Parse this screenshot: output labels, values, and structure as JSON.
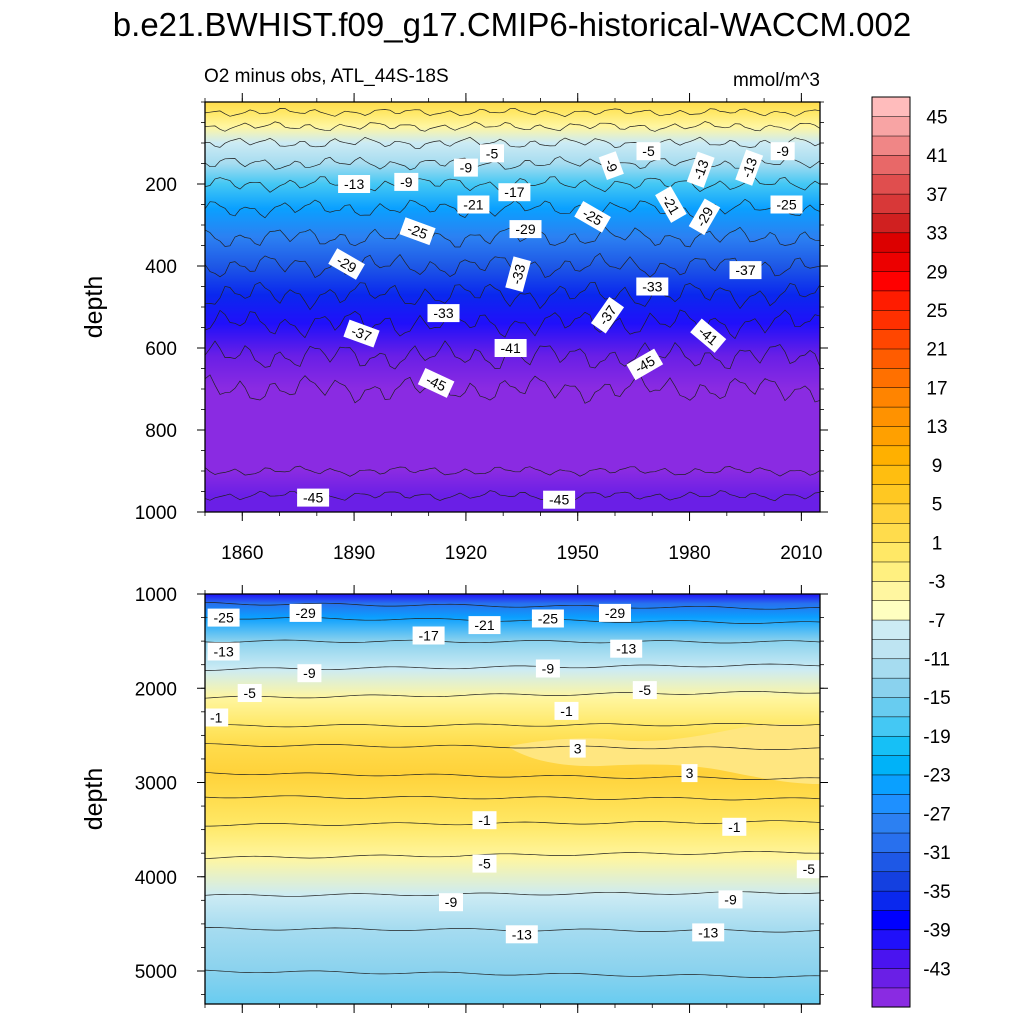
{
  "title": "b.e21.BWHIST.f09_g17.CMIP6-historical-WACCM.002",
  "chart_data": [
    {
      "type": "heatmap",
      "panel": "upper",
      "subtitle_left": "O2 minus obs, ATL_44S-18S",
      "subtitle_right": "mmol/m^3",
      "ylabel": "depth",
      "x_range": [
        1850,
        2015
      ],
      "y_range": [
        0,
        1000
      ],
      "y_inverted": true,
      "xticks": [
        1860,
        1890,
        1920,
        1950,
        1980,
        2010
      ],
      "yticks": [
        200,
        400,
        600,
        800,
        1000
      ],
      "depth_profile": [
        {
          "depth": 0,
          "value": 2
        },
        {
          "depth": 25,
          "value": -1
        },
        {
          "depth": 60,
          "value": -5
        },
        {
          "depth": 100,
          "value": -9
        },
        {
          "depth": 150,
          "value": -13
        },
        {
          "depth": 200,
          "value": -19
        },
        {
          "depth": 260,
          "value": -25
        },
        {
          "depth": 330,
          "value": -29
        },
        {
          "depth": 400,
          "value": -33
        },
        {
          "depth": 470,
          "value": -37
        },
        {
          "depth": 540,
          "value": -41
        },
        {
          "depth": 620,
          "value": -44
        },
        {
          "depth": 700,
          "value": -46
        },
        {
          "depth": 900,
          "value": -46
        },
        {
          "depth": 960,
          "value": -45
        },
        {
          "depth": 1000,
          "value": -44
        }
      ],
      "contour_labels": [
        {
          "text": "-5",
          "year": 1927,
          "depth": 125,
          "angle": 0
        },
        {
          "text": "-5",
          "year": 1969,
          "depth": 120,
          "angle": 0
        },
        {
          "text": "-9",
          "year": 1920,
          "depth": 160,
          "angle": 0
        },
        {
          "text": "-9",
          "year": 1904,
          "depth": 195,
          "angle": 0
        },
        {
          "text": "-9",
          "year": 1959,
          "depth": 155,
          "angle": 70
        },
        {
          "text": "-9",
          "year": 2005,
          "depth": 120,
          "angle": 0
        },
        {
          "text": "-13",
          "year": 1890,
          "depth": 200,
          "angle": 0
        },
        {
          "text": "-13",
          "year": 1983,
          "depth": 165,
          "angle": -70
        },
        {
          "text": "-13",
          "year": 1996,
          "depth": 160,
          "angle": -70
        },
        {
          "text": "-17",
          "year": 1933,
          "depth": 220,
          "angle": 0
        },
        {
          "text": "-21",
          "year": 1922,
          "depth": 250,
          "angle": 0
        },
        {
          "text": "-21",
          "year": 1975,
          "depth": 250,
          "angle": 60
        },
        {
          "text": "-25",
          "year": 1907,
          "depth": 315,
          "angle": 20
        },
        {
          "text": "-25",
          "year": 1954,
          "depth": 280,
          "angle": 30
        },
        {
          "text": "-25",
          "year": 2006,
          "depth": 250,
          "angle": 0
        },
        {
          "text": "-29",
          "year": 1936,
          "depth": 310,
          "angle": 0
        },
        {
          "text": "-29",
          "year": 1984,
          "depth": 280,
          "angle": -60
        },
        {
          "text": "-29",
          "year": 1888,
          "depth": 395,
          "angle": 30
        },
        {
          "text": "-33",
          "year": 1934,
          "depth": 420,
          "angle": -75
        },
        {
          "text": "-33",
          "year": 1970,
          "depth": 450,
          "angle": 0
        },
        {
          "text": "-33",
          "year": 1914,
          "depth": 515,
          "angle": 0
        },
        {
          "text": "-37",
          "year": 1995,
          "depth": 410,
          "angle": 0
        },
        {
          "text": "-37",
          "year": 1958,
          "depth": 520,
          "angle": -55
        },
        {
          "text": "-37",
          "year": 1892,
          "depth": 565,
          "angle": 20
        },
        {
          "text": "-41",
          "year": 1932,
          "depth": 600,
          "angle": 0
        },
        {
          "text": "-41",
          "year": 1985,
          "depth": 570,
          "angle": 40
        },
        {
          "text": "-45",
          "year": 1968,
          "depth": 640,
          "angle": -30
        },
        {
          "text": "-45",
          "year": 1912,
          "depth": 685,
          "angle": 25
        },
        {
          "text": "-45",
          "year": 1879,
          "depth": 965,
          "angle": 0
        },
        {
          "text": "-45",
          "year": 1945,
          "depth": 970,
          "angle": 0
        }
      ]
    },
    {
      "type": "heatmap",
      "panel": "lower",
      "ylabel": "depth",
      "x_range": [
        1850,
        2015
      ],
      "y_range": [
        1000,
        5350
      ],
      "y_inverted": true,
      "yticks": [
        1000,
        2000,
        3000,
        4000,
        5000
      ],
      "depth_profile": [
        {
          "depth": 1000,
          "value": -40
        },
        {
          "depth": 1100,
          "value": -30
        },
        {
          "depth": 1250,
          "value": -25
        },
        {
          "depth": 1500,
          "value": -15
        },
        {
          "depth": 1800,
          "value": -9
        },
        {
          "depth": 2100,
          "value": -4
        },
        {
          "depth": 2400,
          "value": 0.5
        },
        {
          "depth": 2600,
          "value": 2.5
        },
        {
          "depth": 2900,
          "value": 3
        },
        {
          "depth": 3150,
          "value": 2
        },
        {
          "depth": 3450,
          "value": -0.5
        },
        {
          "depth": 3800,
          "value": -4
        },
        {
          "depth": 4200,
          "value": -8
        },
        {
          "depth": 4550,
          "value": -12
        },
        {
          "depth": 5000,
          "value": -15
        },
        {
          "depth": 5350,
          "value": -17
        }
      ],
      "contour_labels": [
        {
          "text": "-25",
          "year": 1855,
          "depth": 1250
        },
        {
          "text": "-29",
          "year": 1877,
          "depth": 1200
        },
        {
          "text": "-21",
          "year": 1925,
          "depth": 1330
        },
        {
          "text": "-17",
          "year": 1910,
          "depth": 1440
        },
        {
          "text": "-25",
          "year": 1942,
          "depth": 1260
        },
        {
          "text": "-29",
          "year": 1960,
          "depth": 1200
        },
        {
          "text": "-13",
          "year": 1855,
          "depth": 1610
        },
        {
          "text": "-13",
          "year": 1963,
          "depth": 1580
        },
        {
          "text": "-9",
          "year": 1878,
          "depth": 1840
        },
        {
          "text": "-9",
          "year": 1942,
          "depth": 1790
        },
        {
          "text": "-5",
          "year": 1862,
          "depth": 2050
        },
        {
          "text": "-5",
          "year": 1968,
          "depth": 2020
        },
        {
          "text": "-1",
          "year": 1853,
          "depth": 2310
        },
        {
          "text": "-1",
          "year": 1947,
          "depth": 2240
        },
        {
          "text": "3",
          "year": 1950,
          "depth": 2640
        },
        {
          "text": "3",
          "year": 1980,
          "depth": 2900
        },
        {
          "text": "-1",
          "year": 1925,
          "depth": 3400
        },
        {
          "text": "-1",
          "year": 1992,
          "depth": 3470
        },
        {
          "text": "-5",
          "year": 1925,
          "depth": 3860
        },
        {
          "text": "-5",
          "year": 2012,
          "depth": 3920
        },
        {
          "text": "-9",
          "year": 1916,
          "depth": 4270
        },
        {
          "text": "-9",
          "year": 1991,
          "depth": 4240
        },
        {
          "text": "-13",
          "year": 1935,
          "depth": 4610
        },
        {
          "text": "-13",
          "year": 1985,
          "depth": 4590
        }
      ]
    }
  ],
  "colorbar": {
    "labels": [
      "45",
      "41",
      "37",
      "33",
      "29",
      "25",
      "21",
      "17",
      "13",
      "9",
      "5",
      "1",
      "-3",
      "-7",
      "-11",
      "-15",
      "-19",
      "-23",
      "-27",
      "-31",
      "-35",
      "-39",
      "-43"
    ],
    "levels_min": -47,
    "levels_step": 2,
    "colors_bottom_to_top": [
      "#8a2be2",
      "#6a1fe6",
      "#4a14f0",
      "#2010fa",
      "#0000ff",
      "#0a28ee",
      "#1440e0",
      "#1e58e6",
      "#2870ee",
      "#2c80f2",
      "#1e90ff",
      "#0aa0ff",
      "#00b2f8",
      "#16c0f6",
      "#44c8f4",
      "#68ccf0",
      "#8ad2ee",
      "#a6dcf0",
      "#bee4f2",
      "#ccebf4",
      "#ffffc0",
      "#fff6a0",
      "#fff080",
      "#ffe866",
      "#ffdc4c",
      "#ffd23a",
      "#ffc822",
      "#ffbe10",
      "#ffb000",
      "#ffa000",
      "#ff9200",
      "#ff8400",
      "#ff7000",
      "#ff5c00",
      "#ff4600",
      "#ff3000",
      "#ff1c00",
      "#ff0000",
      "#ec0000",
      "#dc0000",
      "#d02020",
      "#d83838",
      "#e04e4e",
      "#e86868",
      "#f08686",
      "#f8a4a4",
      "#ffbcbc"
    ]
  }
}
